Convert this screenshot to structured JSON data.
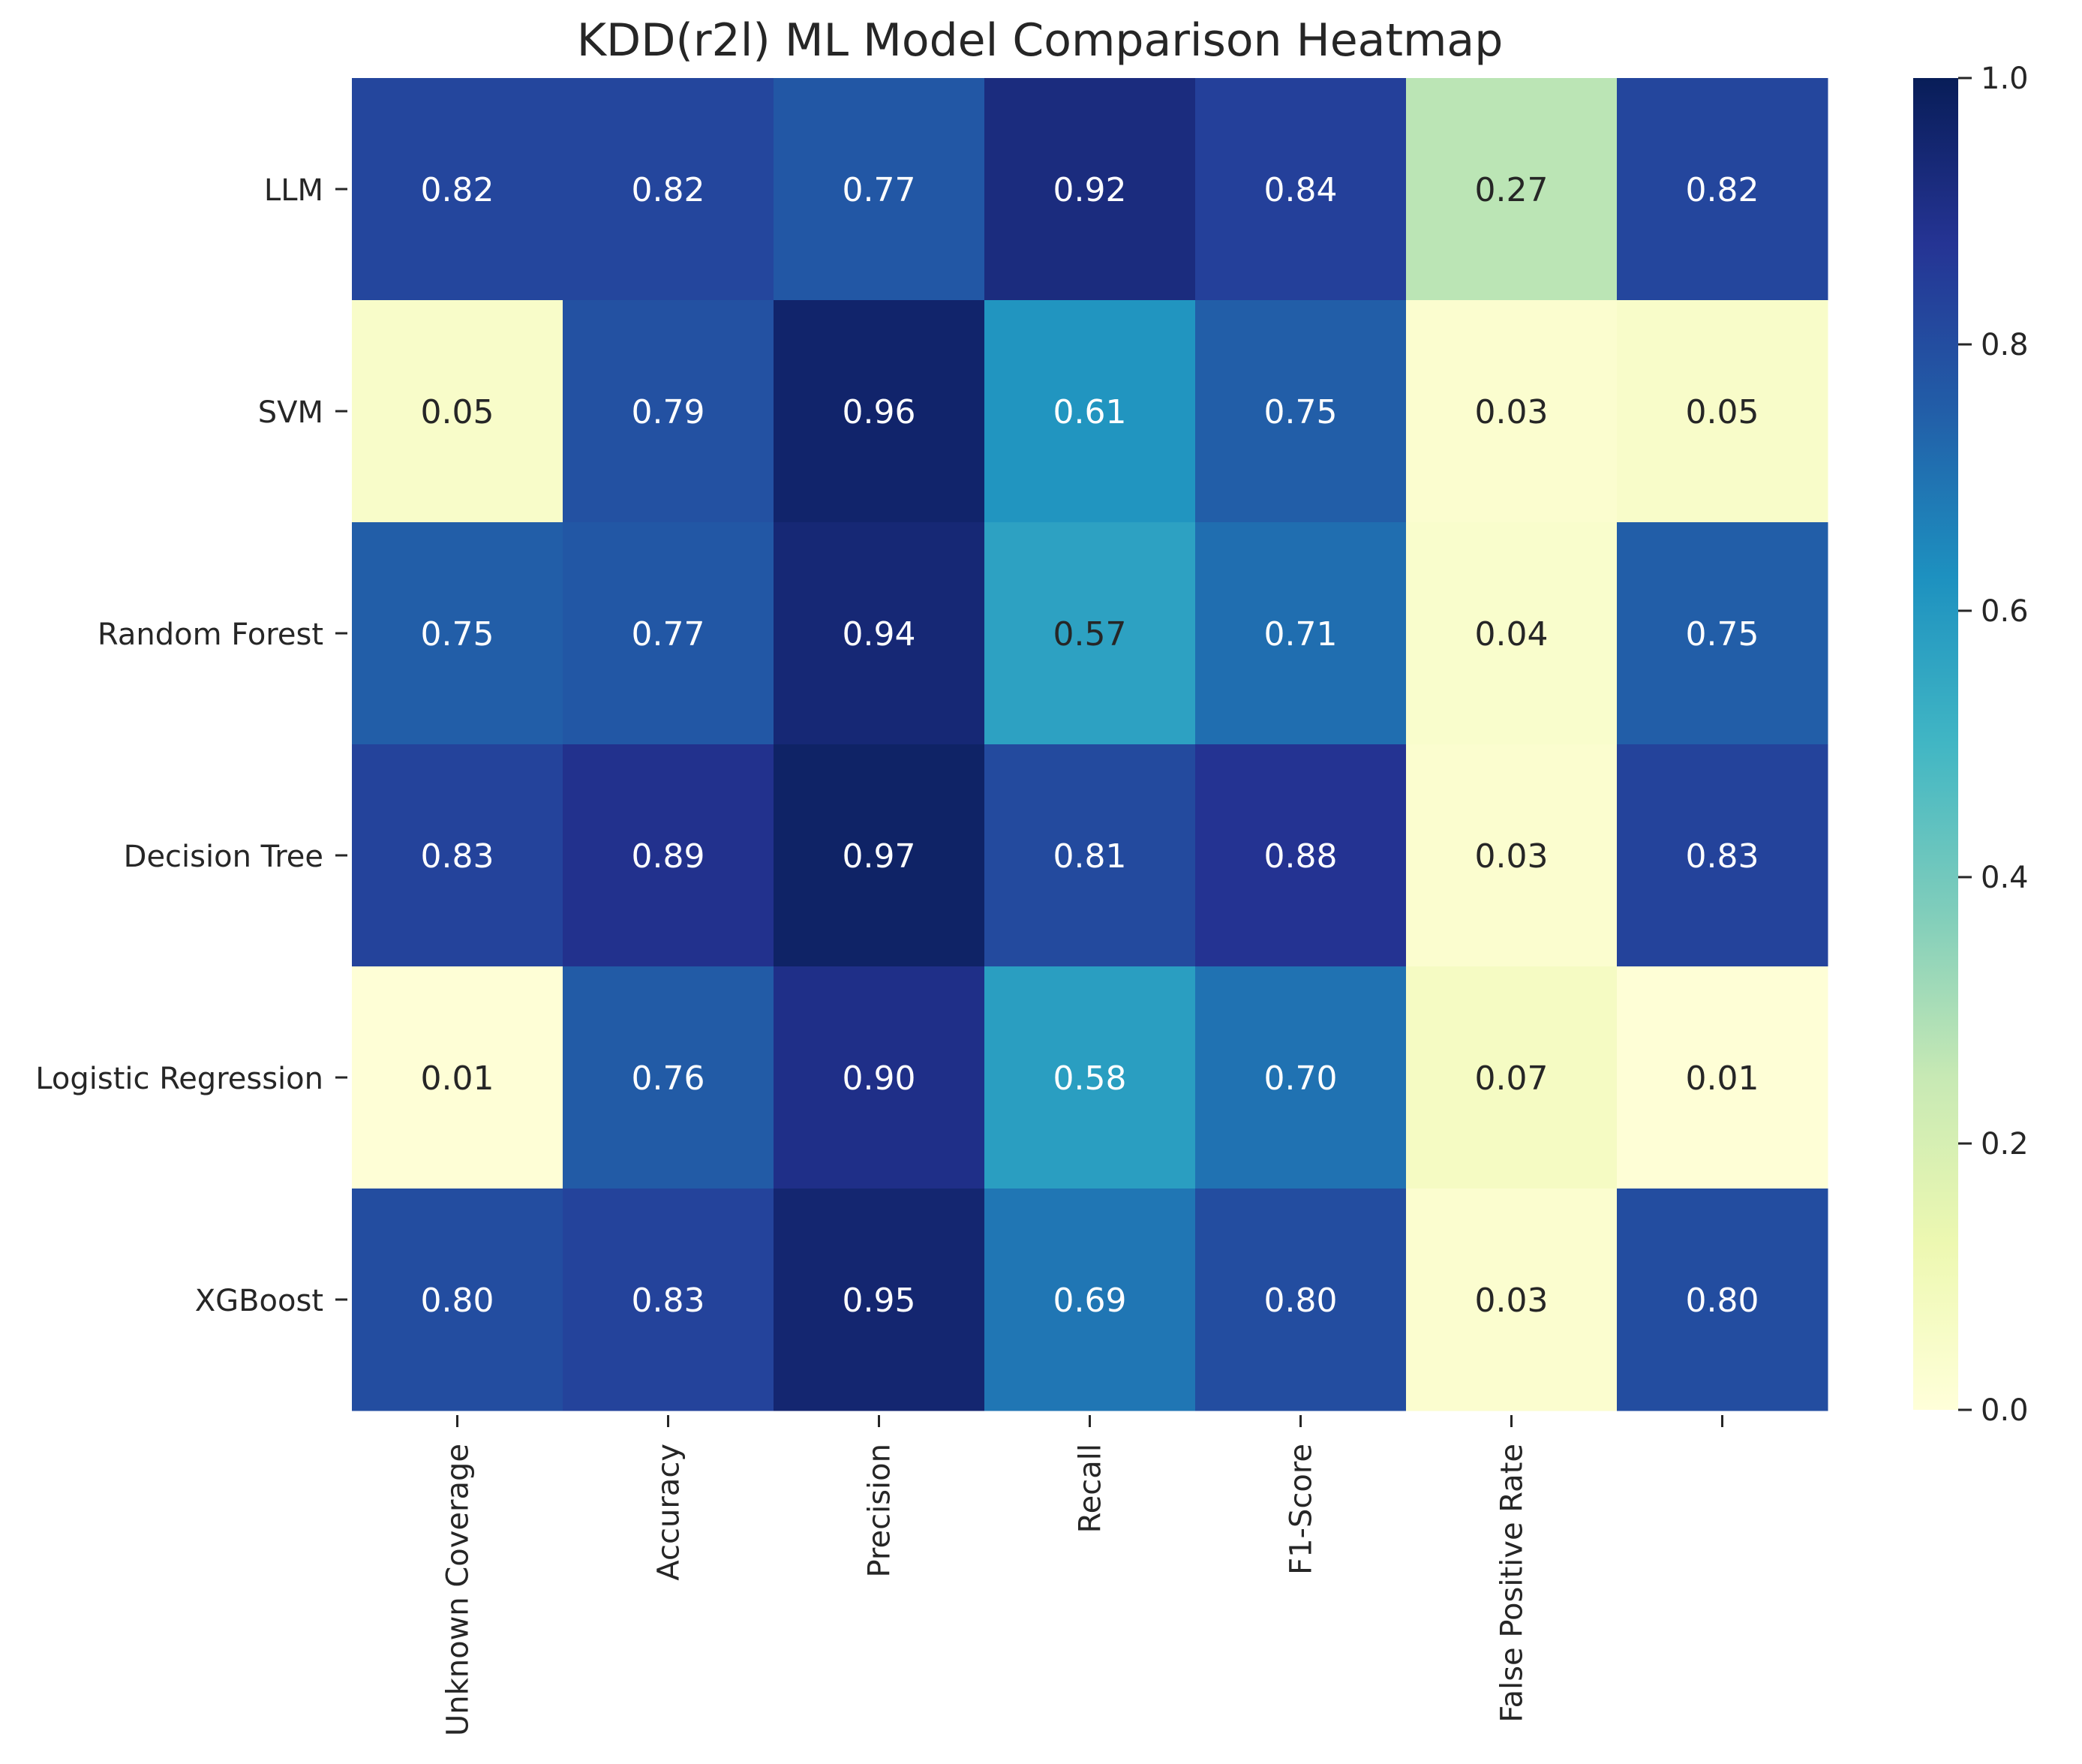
{
  "chart_data": {
    "type": "heatmap",
    "title": "KDD(r2l) ML Model Comparison Heatmap",
    "rows": [
      "LLM",
      "SVM",
      "Random Forest",
      "Decision Tree",
      "Logistic Regression",
      "XGBoost"
    ],
    "columns": [
      "Unknown Coverage",
      "Accuracy",
      "Precision",
      "Recall",
      "F1-Score",
      "False Positive Rate",
      ""
    ],
    "values": [
      [
        0.82,
        0.82,
        0.77,
        0.92,
        0.84,
        0.27,
        0.82
      ],
      [
        0.05,
        0.79,
        0.96,
        0.61,
        0.75,
        0.03,
        0.05
      ],
      [
        0.75,
        0.77,
        0.94,
        0.57,
        0.71,
        0.04,
        0.75
      ],
      [
        0.83,
        0.89,
        0.97,
        0.81,
        0.88,
        0.03,
        0.83
      ],
      [
        0.01,
        0.76,
        0.9,
        0.58,
        0.7,
        0.07,
        0.01
      ],
      [
        0.8,
        0.83,
        0.95,
        0.69,
        0.8,
        0.03,
        0.8
      ]
    ],
    "value_format": "0.00",
    "colormap": "YlGnBu",
    "colorbar": {
      "range": [
        0,
        1
      ],
      "ticks": [
        0.0,
        0.2,
        0.4,
        0.6,
        0.8,
        1.0
      ],
      "tick_labels": [
        "0.0",
        "0.2",
        "0.4",
        "0.6",
        "0.8",
        "1.0"
      ]
    }
  },
  "colors": {
    "text_dark": "#262626",
    "text_light": "#ffffff"
  }
}
